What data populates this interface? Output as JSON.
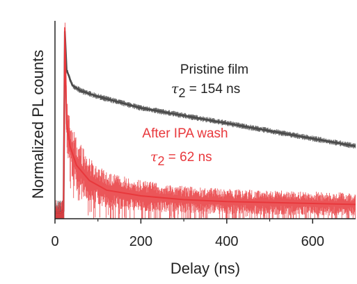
{
  "chart_data": {
    "type": "line",
    "xlabel": "Delay (ns)",
    "ylabel": "Normalized PL counts",
    "xlim": [
      0,
      700
    ],
    "ylim": [
      0,
      1
    ],
    "x_ticks": [
      0,
      200,
      400,
      600
    ],
    "x_tick_labels": [
      "0",
      "200",
      "400",
      "600"
    ],
    "grid": false,
    "series": [
      {
        "name": "Pristine film",
        "color": "#4a4a4a",
        "points": [
          [
            0,
            0.03
          ],
          [
            10,
            0.03
          ],
          [
            20,
            0.04
          ],
          [
            23,
            0.98
          ],
          [
            27,
            0.78
          ],
          [
            40,
            0.7
          ],
          [
            60,
            0.67
          ],
          [
            100,
            0.64
          ],
          [
            150,
            0.61
          ],
          [
            200,
            0.58
          ],
          [
            300,
            0.54
          ],
          [
            400,
            0.5
          ],
          [
            500,
            0.46
          ],
          [
            600,
            0.42
          ],
          [
            700,
            0.38
          ]
        ]
      },
      {
        "name": "After IPA wash",
        "color": "#e8383c",
        "points": [
          [
            0,
            0.03
          ],
          [
            10,
            0.03
          ],
          [
            20,
            0.04
          ],
          [
            23,
            1.0
          ],
          [
            27,
            0.5
          ],
          [
            35,
            0.38
          ],
          [
            50,
            0.28
          ],
          [
            80,
            0.2
          ],
          [
            120,
            0.15
          ],
          [
            200,
            0.12
          ],
          [
            300,
            0.1
          ],
          [
            400,
            0.09
          ],
          [
            500,
            0.085
          ],
          [
            600,
            0.08
          ],
          [
            700,
            0.075
          ]
        ]
      }
    ],
    "annotations": [
      {
        "series": "Pristine film",
        "label": "Pristine film",
        "tau_symbol": "τ",
        "tau_sub": "2",
        "tau_value": " = 154 ns",
        "color": "#222222"
      },
      {
        "series": "After IPA wash",
        "label": "After IPA wash",
        "tau_symbol": "τ",
        "tau_sub": "2",
        "tau_value": " = 62 ns",
        "color": "#e8383c"
      }
    ]
  }
}
